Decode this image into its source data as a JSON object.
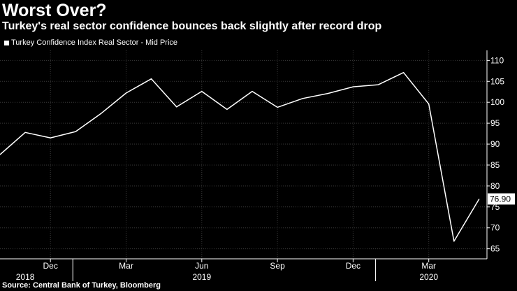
{
  "title": "Worst Over?",
  "subtitle": "Turkey's real sector confidence bounces back slightly after record drop",
  "legend_label": "Turkey Confidence Index Real Sector - Mid Price",
  "source": "Source: Central Bank of Turkey, Bloomberg",
  "colors": {
    "background": "#000000",
    "line": "#ffffff",
    "grid": "#3a3a3a",
    "text": "#ffffff"
  },
  "chart_data": {
    "type": "line",
    "title": "Worst Over?",
    "subtitle": "Turkey's real sector confidence bounces back slightly after record drop",
    "series": [
      {
        "name": "Turkey Confidence Index Real Sector - Mid Price",
        "x": [
          "2018-10",
          "2018-11",
          "2018-12",
          "2019-01",
          "2019-02",
          "2019-03",
          "2019-04",
          "2019-05",
          "2019-06",
          "2019-07",
          "2019-08",
          "2019-09",
          "2019-10",
          "2019-11",
          "2019-12",
          "2020-01",
          "2020-02",
          "2020-03",
          "2020-04",
          "2020-05"
        ],
        "values": [
          87.5,
          92.8,
          91.5,
          93.0,
          97.3,
          102.2,
          105.6,
          98.9,
          102.6,
          98.3,
          102.6,
          98.8,
          100.9,
          102.1,
          103.7,
          104.2,
          107.1,
          99.6,
          66.8,
          76.9
        ]
      }
    ],
    "x_tick_labels": [
      {
        "label": "Dec",
        "at": "2018-12"
      },
      {
        "label": "Mar",
        "at": "2019-03"
      },
      {
        "label": "Jun",
        "at": "2019-06"
      },
      {
        "label": "Sep",
        "at": "2019-09"
      },
      {
        "label": "Dec",
        "at": "2019-12"
      },
      {
        "label": "Mar",
        "at": "2020-03"
      }
    ],
    "year_labels": [
      {
        "label": "2018",
        "at": "2018-11"
      },
      {
        "label": "2019",
        "at": "2019-06"
      },
      {
        "label": "2020",
        "at": "2020-03"
      }
    ],
    "y_ticks": [
      65,
      70,
      75,
      80,
      85,
      90,
      95,
      100,
      105,
      110
    ],
    "ylim": [
      62.6,
      112.4
    ],
    "last_value_label": "76.90",
    "grid": "horizontal, dotted",
    "legend_position": "top-left",
    "y_axis_side": "right"
  }
}
